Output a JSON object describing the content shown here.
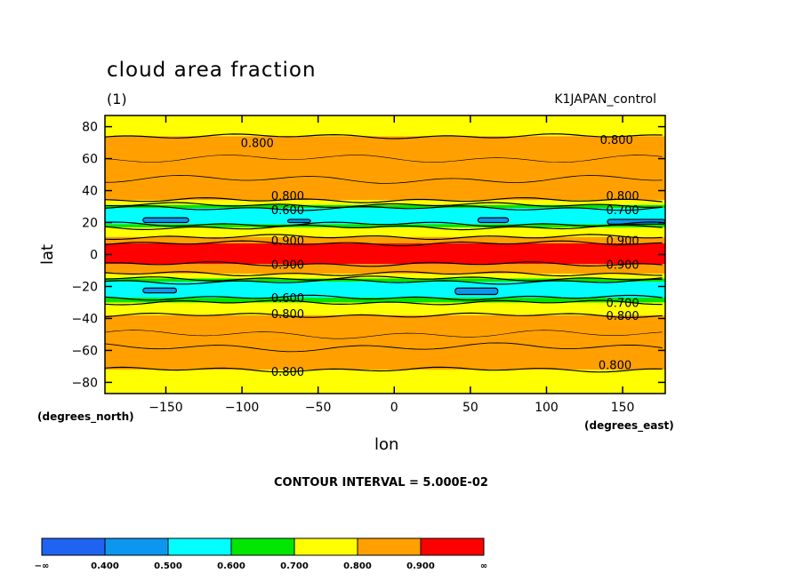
{
  "header": {
    "title": "cloud area fraction",
    "subtitle": "(1)",
    "experiment": "K1JAPAN_control"
  },
  "axes": {
    "xlabel": "lon",
    "ylabel": "lat",
    "x_unit": "(degrees_east)",
    "y_unit": "(degrees_north)"
  },
  "footer": {
    "contour_interval": "CONTOUR INTERVAL = 5.000E-02"
  },
  "colors": {
    "lt_0400": "#1e64f0",
    "c0400_0500": "#0c96f0",
    "c0500_0600": "#00ffff",
    "c0600_0700": "#00e600",
    "c0700_0800": "#ffff00",
    "c0800_0900": "#ffa000",
    "gt_0900": "#ff0000"
  },
  "chart_data": {
    "type": "heatmap",
    "title": "cloud area fraction",
    "subtitle": "(1)",
    "xlabel": "lon",
    "ylabel": "lat",
    "xlim": [
      -190,
      178
    ],
    "ylim": [
      -87,
      87
    ],
    "x_ticks": [
      -150,
      -100,
      -50,
      0,
      50,
      100,
      150
    ],
    "y_ticks": [
      80,
      60,
      40,
      20,
      0,
      -20,
      -40,
      -60,
      -80
    ],
    "contour_interval": 0.05,
    "legend": {
      "placement": "bottom",
      "boundaries": [
        "-∞",
        "0.400",
        "0.500",
        "0.600",
        "0.700",
        "0.800",
        "0.900",
        "∞"
      ]
    },
    "zonal_bands": [
      {
        "lat_top": 87,
        "lat_bottom": 74,
        "value": 0.75
      },
      {
        "lat_top": 74,
        "lat_bottom": 34,
        "value": 0.85
      },
      {
        "lat_top": 34,
        "lat_bottom": 31,
        "value": 0.75
      },
      {
        "lat_top": 31,
        "lat_bottom": 29,
        "value": 0.65
      },
      {
        "lat_top": 29,
        "lat_bottom": 19,
        "value": 0.55
      },
      {
        "lat_top": 19,
        "lat_bottom": 17,
        "value": 0.65
      },
      {
        "lat_top": 17,
        "lat_bottom": 11,
        "value": 0.75
      },
      {
        "lat_top": 11,
        "lat_bottom": 7,
        "value": 0.85
      },
      {
        "lat_top": 7,
        "lat_bottom": -6,
        "value": 0.95
      },
      {
        "lat_top": -6,
        "lat_bottom": -12,
        "value": 0.85
      },
      {
        "lat_top": -12,
        "lat_bottom": -15,
        "value": 0.75
      },
      {
        "lat_top": -15,
        "lat_bottom": -17,
        "value": 0.65
      },
      {
        "lat_top": -17,
        "lat_bottom": -27,
        "value": 0.55
      },
      {
        "lat_top": -27,
        "lat_bottom": -30,
        "value": 0.65
      },
      {
        "lat_top": -30,
        "lat_bottom": -38,
        "value": 0.75
      },
      {
        "lat_top": -38,
        "lat_bottom": -72,
        "value": 0.85
      },
      {
        "lat_top": -72,
        "lat_bottom": -87,
        "value": 0.75
      }
    ],
    "low_cloud_patches": [
      {
        "lon_min": -165,
        "lon_max": -135,
        "lat_min": 20,
        "lat_max": 23,
        "value": 0.45
      },
      {
        "lon_min": -70,
        "lon_max": -55,
        "lat_min": 20,
        "lat_max": 22,
        "value": 0.45
      },
      {
        "lon_min": 55,
        "lon_max": 75,
        "lat_min": 20,
        "lat_max": 23,
        "value": 0.45
      },
      {
        "lon_min": 140,
        "lon_max": 178,
        "lat_min": 19,
        "lat_max": 22,
        "value": 0.45
      },
      {
        "lon_min": -165,
        "lon_max": -143,
        "lat_min": -24,
        "lat_max": -21,
        "value": 0.45
      },
      {
        "lon_min": 40,
        "lon_max": 68,
        "lat_min": -25,
        "lat_max": -21,
        "value": 0.45
      }
    ],
    "contour_labels": [
      {
        "text": "0.800",
        "lon": -90,
        "lat": 70
      },
      {
        "text": "0.800",
        "lon": 146,
        "lat": 72
      },
      {
        "text": "0.800",
        "lon": -70,
        "lat": 37
      },
      {
        "text": "0.800",
        "lon": 150,
        "lat": 37
      },
      {
        "text": "0.600",
        "lon": -70,
        "lat": 28
      },
      {
        "text": "0.700",
        "lon": 150,
        "lat": 28
      },
      {
        "text": "0.900",
        "lon": -70,
        "lat": 9
      },
      {
        "text": "0.900",
        "lon": 150,
        "lat": 9
      },
      {
        "text": "0.900",
        "lon": -70,
        "lat": -6
      },
      {
        "text": "0.900",
        "lon": 150,
        "lat": -6
      },
      {
        "text": "0.600",
        "lon": -70,
        "lat": -27
      },
      {
        "text": "0.700",
        "lon": 150,
        "lat": -30
      },
      {
        "text": "0.800",
        "lon": -70,
        "lat": -37
      },
      {
        "text": "0.800",
        "lon": 150,
        "lat": -38
      },
      {
        "text": "0.800",
        "lon": -70,
        "lat": -73
      },
      {
        "text": "0.800",
        "lon": 145,
        "lat": -69
      }
    ]
  }
}
